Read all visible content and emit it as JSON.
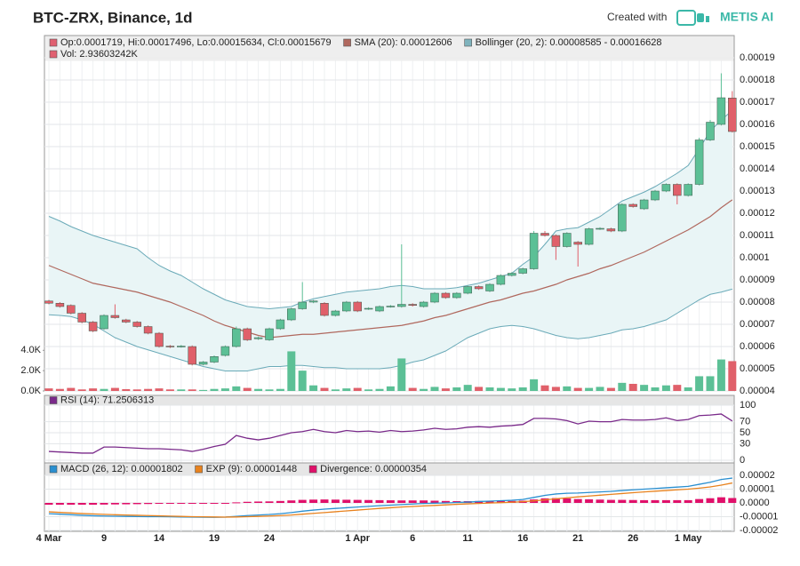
{
  "chart_data": [
    {
      "type": "candlestick",
      "title": "BTC-ZRX, Binance, 1d",
      "credit": "Created with",
      "brand": "METIS AI",
      "legend": [
        {
          "text": "Op:0.0001719, Hi:0.00017496, Lo:0.00015634, Cl:0.00015679",
          "color": "#e06070"
        },
        {
          "text": "SMA (20): 0.00012606",
          "color": "#b0685e"
        },
        {
          "text": "Bollinger (20, 2): 0.00008585 - 0.00016628",
          "color": "#7fb3bd"
        },
        {
          "text": "Vol: 2.93603242K",
          "color": "#e06070"
        }
      ],
      "categories": [
        "4 Mar",
        null,
        null,
        null,
        null,
        "9",
        null,
        null,
        null,
        null,
        "14",
        null,
        null,
        null,
        null,
        "19",
        null,
        null,
        null,
        null,
        "24",
        null,
        null,
        null,
        null,
        null,
        null,
        null,
        "1 Apr",
        null,
        null,
        null,
        null,
        "6",
        null,
        null,
        null,
        null,
        "11",
        null,
        null,
        null,
        null,
        "16",
        null,
        null,
        null,
        null,
        "21",
        null,
        null,
        null,
        null,
        "26",
        null,
        null,
        null,
        null,
        "1 May",
        null,
        null,
        null,
        null
      ],
      "open": [
        8.05e-05,
        7.95e-05,
        7.85e-05,
        7.5e-05,
        7.1e-05,
        6.8e-05,
        7.4e-05,
        7.2e-05,
        7.1e-05,
        6.9e-05,
        6.6e-05,
        6.02e-05,
        6e-05,
        6e-05,
        5.2e-05,
        5.3e-05,
        5.6e-05,
        6e-05,
        6.8e-05,
        6.35e-05,
        6.3e-05,
        6.8e-05,
        7.2e-05,
        7.7e-05,
        8e-05,
        7.95e-05,
        7.4e-05,
        7.6e-05,
        8e-05,
        7.7e-05,
        7.6e-05,
        7.8e-05,
        7.8e-05,
        7.9e-05,
        7.8e-05,
        8e-05,
        8.4e-05,
        8.2e-05,
        8.4e-05,
        8.7e-05,
        8.5e-05,
        8.8e-05,
        9.2e-05,
        9.3e-05,
        9.5e-05,
        0.000111,
        0.00011,
        0.000105,
        0.000107,
        0.000106,
        0.000113,
        0.000113,
        0.000112,
        0.000124,
        0.000122,
        0.000126,
        0.00013,
        0.000133,
        0.000128,
        0.000133,
        0.000153,
        0.00016,
        0.0001719
      ],
      "high": [
        8.1e-05,
        8e-05,
        7.9e-05,
        7.55e-05,
        7.15e-05,
        7.45e-05,
        7.9e-05,
        7.25e-05,
        7.15e-05,
        6.95e-05,
        6.65e-05,
        6.07e-05,
        6.07e-05,
        6.05e-05,
        5.35e-05,
        5.6e-05,
        6.05e-05,
        6.9e-05,
        6.85e-05,
        6.45e-05,
        6.85e-05,
        7.25e-05,
        7.75e-05,
        8.9e-05,
        8.1e-05,
        8e-05,
        7.65e-05,
        8.05e-05,
        8.05e-05,
        7.77e-05,
        7.85e-05,
        7.87e-05,
        0.000106,
        7.95e-05,
        8.05e-05,
        8.45e-05,
        8.45e-05,
        8.45e-05,
        8.75e-05,
        8.75e-05,
        8.85e-05,
        9.25e-05,
        9.35e-05,
        9.55e-05,
        0.000112,
        0.000112,
        0.0001105,
        0.0001115,
        0.0001075,
        0.0001135,
        0.0001137,
        0.0001135,
        0.0001245,
        0.0001245,
        0.0001265,
        0.0001305,
        0.0001335,
        0.0001335,
        0.0001335,
        0.000154,
        0.000162,
        0.000183,
        0.00017496
      ],
      "low": [
        7.9e-05,
        7.75e-05,
        7.45e-05,
        7.05e-05,
        6.65e-05,
        6.75e-05,
        7.25e-05,
        7.05e-05,
        6.85e-05,
        6.55e-05,
        5.95e-05,
        5.93e-05,
        5.95e-05,
        5.15e-05,
        5.15e-05,
        5.25e-05,
        5.55e-05,
        5.95e-05,
        6.25e-05,
        6.3e-05,
        6.25e-05,
        6.75e-05,
        7.15e-05,
        7.65e-05,
        7.95e-05,
        7.35e-05,
        7.35e-05,
        7.55e-05,
        7.55e-05,
        7.65e-05,
        7.55e-05,
        7.75e-05,
        7.75e-05,
        7.8e-05,
        7.75e-05,
        7.95e-05,
        8.15e-05,
        8.15e-05,
        8.35e-05,
        8.55e-05,
        8.45e-05,
        8.75e-05,
        9.15e-05,
        9.25e-05,
        9.45e-05,
        0.0001095,
        9.9e-05,
        0.0001045,
        9.6e-05,
        0.0001055,
        0.0001125,
        0.0001115,
        0.0001115,
        0.0001225,
        0.0001215,
        0.0001255,
        0.0001295,
        0.000124,
        0.0001275,
        0.0001325,
        0.0001525,
        0.0001595,
        0.00015634
      ],
      "close": [
        7.95e-05,
        7.8e-05,
        7.5e-05,
        7.1e-05,
        6.7e-05,
        7.4e-05,
        7.3e-05,
        7.1e-05,
        6.9e-05,
        6.6e-05,
        6e-05,
        5.98e-05,
        6.02e-05,
        5.2e-05,
        5.3e-05,
        5.55e-05,
        6e-05,
        6.8e-05,
        6.3e-05,
        6.4e-05,
        6.8e-05,
        7.2e-05,
        7.7e-05,
        8e-05,
        8.05e-05,
        7.4e-05,
        7.6e-05,
        8e-05,
        7.6e-05,
        7.72e-05,
        7.8e-05,
        7.82e-05,
        7.9e-05,
        7.85e-05,
        8e-05,
        8.4e-05,
        8.2e-05,
        8.4e-05,
        8.7e-05,
        8.6e-05,
        8.8e-05,
        9.2e-05,
        9.3e-05,
        9.5e-05,
        0.000111,
        0.00011,
        0.000105,
        0.000111,
        0.000106,
        0.000113,
        0.0001132,
        0.000112,
        0.000124,
        0.000123,
        0.000126,
        0.00013,
        0.000133,
        0.000128,
        0.000133,
        0.000153,
        0.000161,
        0.000172,
        0.00015679
      ],
      "volume": [
        250,
        200,
        300,
        150,
        250,
        200,
        300,
        180,
        150,
        200,
        250,
        150,
        150,
        150,
        100,
        200,
        250,
        450,
        300,
        200,
        150,
        200,
        3900,
        2000,
        550,
        300,
        150,
        250,
        300,
        150,
        200,
        450,
        3200,
        300,
        200,
        400,
        250,
        350,
        600,
        400,
        350,
        300,
        250,
        350,
        1150,
        550,
        400,
        450,
        300,
        300,
        400,
        300,
        800,
        700,
        600,
        350,
        550,
        600,
        350,
        1450,
        1450,
        3100,
        2936.03242
      ],
      "colors": {
        "up": "#5cc096",
        "down": "#e0606a",
        "edge": "#3d5a4c"
      },
      "sma": {
        "color": "#b0685e",
        "values": [
          9.65e-05,
          9.45e-05,
          9.25e-05,
          9.05e-05,
          8.85e-05,
          8.75e-05,
          8.65e-05,
          8.55e-05,
          8.45e-05,
          8.3e-05,
          8.15e-05,
          8e-05,
          7.8e-05,
          7.6e-05,
          7.4e-05,
          7.15e-05,
          6.95e-05,
          6.8e-05,
          6.65e-05,
          6.5e-05,
          6.4e-05,
          6.45e-05,
          6.5e-05,
          6.55e-05,
          6.55e-05,
          6.6e-05,
          6.65e-05,
          6.7e-05,
          6.75e-05,
          6.8e-05,
          6.85e-05,
          6.9e-05,
          6.95e-05,
          7.05e-05,
          7.15e-05,
          7.3e-05,
          7.4e-05,
          7.55e-05,
          7.7e-05,
          7.85e-05,
          8e-05,
          8.1e-05,
          8.25e-05,
          8.4e-05,
          8.5e-05,
          8.65e-05,
          8.8e-05,
          9e-05,
          9.15e-05,
          9.3e-05,
          9.5e-05,
          9.65e-05,
          9.85e-05,
          0.0001005,
          0.0001025,
          0.000105,
          0.0001075,
          0.00011,
          0.0001125,
          0.0001155,
          0.0001185,
          0.0001225,
          0.00012606
        ]
      },
      "bollinger": {
        "color": "#6aaab8",
        "fill": "#e9f5f6",
        "upper": [
          0.0001186,
          0.0001165,
          0.000114,
          0.000112,
          0.00011,
          0.0001085,
          0.000107,
          0.0001055,
          0.000104,
          0.0001,
          9.65e-05,
          9.4e-05,
          9.2e-05,
          8.9e-05,
          8.6e-05,
          8.35e-05,
          8.1e-05,
          7.95e-05,
          7.8e-05,
          7.75e-05,
          7.7e-05,
          7.75e-05,
          7.8e-05,
          8e-05,
          8.15e-05,
          8.25e-05,
          8.35e-05,
          8.45e-05,
          8.5e-05,
          8.55e-05,
          8.6e-05,
          8.7e-05,
          8.75e-05,
          8.7e-05,
          8.6e-05,
          8.6e-05,
          8.6e-05,
          8.65e-05,
          8.75e-05,
          8.85e-05,
          9e-05,
          9.15e-05,
          9.3e-05,
          9.7e-05,
          0.0001005,
          0.000106,
          0.000112,
          0.000113,
          0.0001135,
          0.000116,
          0.0001185,
          0.000122,
          0.0001255,
          0.0001275,
          0.0001295,
          0.000132,
          0.000135,
          0.000138,
          0.0001415,
          0.000149,
          0.000157,
          0.000162,
          0.00016628
        ],
        "lower": [
          7.43e-05,
          7.4e-05,
          7.35e-05,
          7.2e-05,
          7e-05,
          6.7e-05,
          6.4e-05,
          6.2e-05,
          6e-05,
          5.85e-05,
          5.7e-05,
          5.55e-05,
          5.4e-05,
          5.25e-05,
          5.1e-05,
          5e-05,
          4.9e-05,
          4.9e-05,
          4.9e-05,
          5e-05,
          5.1e-05,
          5.1e-05,
          5.15e-05,
          5.15e-05,
          5.1e-05,
          5.05e-05,
          5.05e-05,
          5e-05,
          5e-05,
          5e-05,
          5e-05,
          5.05e-05,
          5.15e-05,
          5.3e-05,
          5.4e-05,
          5.6e-05,
          5.8e-05,
          6.1e-05,
          6.4e-05,
          6.6e-05,
          6.8e-05,
          6.9e-05,
          6.95e-05,
          6.9e-05,
          6.8e-05,
          6.65e-05,
          6.5e-05,
          6.4e-05,
          6.35e-05,
          6.4e-05,
          6.5e-05,
          6.6e-05,
          6.75e-05,
          6.8e-05,
          6.9e-05,
          7.05e-05,
          7.2e-05,
          7.5e-05,
          7.8e-05,
          8.1e-05,
          8.35e-05,
          8.45e-05,
          8.585e-05
        ]
      },
      "ylim": [
        4e-05,
        0.0002
      ],
      "yticks": [
        4e-05,
        5e-05,
        6e-05,
        7e-05,
        8e-05,
        9e-05,
        0.0001,
        0.00011,
        0.00012,
        0.00013,
        0.00014,
        0.00015,
        0.00016,
        0.00017,
        0.00018,
        0.00019
      ],
      "vlim": [
        0,
        35000
      ],
      "vticks": [
        {
          "value": 0,
          "label": "0.0K"
        },
        {
          "value": 2000,
          "label": "2.0K"
        },
        {
          "value": 4000,
          "label": "4.0K"
        }
      ],
      "grid": true
    },
    {
      "type": "line",
      "ylim": [
        0,
        100
      ],
      "yticks": [
        0,
        30,
        50,
        70,
        100
      ],
      "series": [
        {
          "name": "RSI (14): 71.2506313",
          "color": "#7a2a8a",
          "values": [
            16,
            15,
            14,
            13,
            13,
            24,
            24,
            23,
            22,
            21,
            21,
            20,
            19,
            16,
            20,
            25,
            29,
            45,
            40,
            37,
            40,
            45,
            50,
            52,
            56,
            52,
            50,
            54,
            52,
            53,
            51,
            54,
            52,
            53,
            55,
            58,
            56,
            57,
            60,
            61,
            60,
            62,
            63,
            65,
            76,
            76,
            75,
            72,
            66,
            71,
            70,
            70,
            74,
            73,
            73,
            74,
            77,
            72,
            74,
            81,
            82,
            84,
            71.2506313
          ]
        }
      ],
      "grid": true
    },
    {
      "type": "line",
      "ylim": [
        -2e-05,
        2e-05
      ],
      "yticks": [
        -2e-05,
        -1e-05,
        {
          "value": 0,
          "label": "0.0000"
        },
        1e-05,
        2e-05
      ],
      "series": [
        {
          "name": "MACD (26, 12): 0.00001802",
          "color": "#2a8fd0",
          "values": [
            -7.8e-06,
            -8.2e-06,
            -8.6e-06,
            -9e-06,
            -9.3e-06,
            -9.5e-06,
            -9.7e-06,
            -9.8e-06,
            -9.9e-06,
            -1e-05,
            -1e-05,
            -1.01e-05,
            -1.02e-05,
            -1.03e-05,
            -1.04e-05,
            -1.05e-05,
            -1.03e-05,
            -9.8e-06,
            -9.2e-06,
            -8.8e-06,
            -8.4e-06,
            -7.8e-06,
            -7e-06,
            -6e-06,
            -5.2e-06,
            -4.5e-06,
            -4e-06,
            -3.5e-06,
            -3e-06,
            -2.5e-06,
            -2e-06,
            -1.6e-06,
            -1.2e-06,
            -8e-07,
            -4e-07,
            -2e-07,
            0,
            3e-07,
            6e-07,
            1e-06,
            1.3e-06,
            1.6e-06,
            1.9e-06,
            2.5e-06,
            4e-06,
            5.5e-06,
            6.5e-06,
            7e-06,
            7.2e-06,
            7.6e-06,
            8e-06,
            8.4e-06,
            9e-06,
            9.5e-06,
            1e-05,
            1.05e-05,
            1.1e-05,
            1.15e-05,
            1.2e-05,
            1.35e-05,
            1.5e-05,
            1.7e-05,
            1.802e-05
          ]
        },
        {
          "name": "EXP (9): 0.00001448",
          "color": "#e8821e",
          "values": [
            -6.5e-06,
            -6.9e-06,
            -7.3e-06,
            -7.7e-06,
            -8e-06,
            -8.3e-06,
            -8.6e-06,
            -8.8e-06,
            -9e-06,
            -9.2e-06,
            -9.4e-06,
            -9.6e-06,
            -9.8e-06,
            -1e-05,
            -1.01e-05,
            -1.02e-05,
            -1.03e-05,
            -1.02e-05,
            -1e-05,
            -9.8e-06,
            -9.5e-06,
            -9.2e-06,
            -8.8e-06,
            -8.2e-06,
            -7.6e-06,
            -7e-06,
            -6.4e-06,
            -5.8e-06,
            -5.2e-06,
            -4.6e-06,
            -4e-06,
            -3.5e-06,
            -3e-06,
            -2.6e-06,
            -2.2e-06,
            -1.8e-06,
            -1.4e-06,
            -1e-06,
            -7e-07,
            -4e-07,
            -1e-07,
            2e-07,
            5e-07,
            9e-07,
            1.5e-06,
            2.2e-06,
            3e-06,
            3.7e-06,
            4.4e-06,
            5e-06,
            5.6e-06,
            6.2e-06,
            6.8e-06,
            7.4e-06,
            8e-06,
            8.5e-06,
            9e-06,
            9.5e-06,
            1e-05,
            1.07e-05,
            1.16e-05,
            1.29e-05,
            1.448e-05
          ]
        },
        {
          "name": "Divergence: 0.00000354",
          "color": "#e0106a",
          "type": "bar",
          "values": [
            -1.3e-06,
            -1.3e-06,
            -1.3e-06,
            -1.3e-06,
            -1.3e-06,
            -1.2e-06,
            -1.1e-06,
            -1e-06,
            -9e-07,
            -8e-07,
            -6e-07,
            -5e-07,
            -4e-07,
            -3e-07,
            -3e-07,
            -3e-07,
            0,
            4e-07,
            8e-07,
            1e-06,
            1.1e-06,
            1.4e-06,
            1.8e-06,
            2.2e-06,
            2.4e-06,
            2.5e-06,
            2.4e-06,
            2.3e-06,
            2.2e-06,
            2.1e-06,
            2e-06,
            1.9e-06,
            1.8e-06,
            1.8e-06,
            1.8e-06,
            1.6e-06,
            1.4e-06,
            1.3e-06,
            1.3e-06,
            1.4e-06,
            1.4e-06,
            1.4e-06,
            1.4e-06,
            1.6e-06,
            2.5e-06,
            3.3e-06,
            3.5e-06,
            3.3e-06,
            2.8e-06,
            2.6e-06,
            2.4e-06,
            2.2e-06,
            2.2e-06,
            2.1e-06,
            2e-06,
            2e-06,
            2e-06,
            2e-06,
            2e-06,
            2.8e-06,
            3.4e-06,
            4.1e-06,
            3.54e-06
          ]
        }
      ],
      "grid": true
    }
  ]
}
